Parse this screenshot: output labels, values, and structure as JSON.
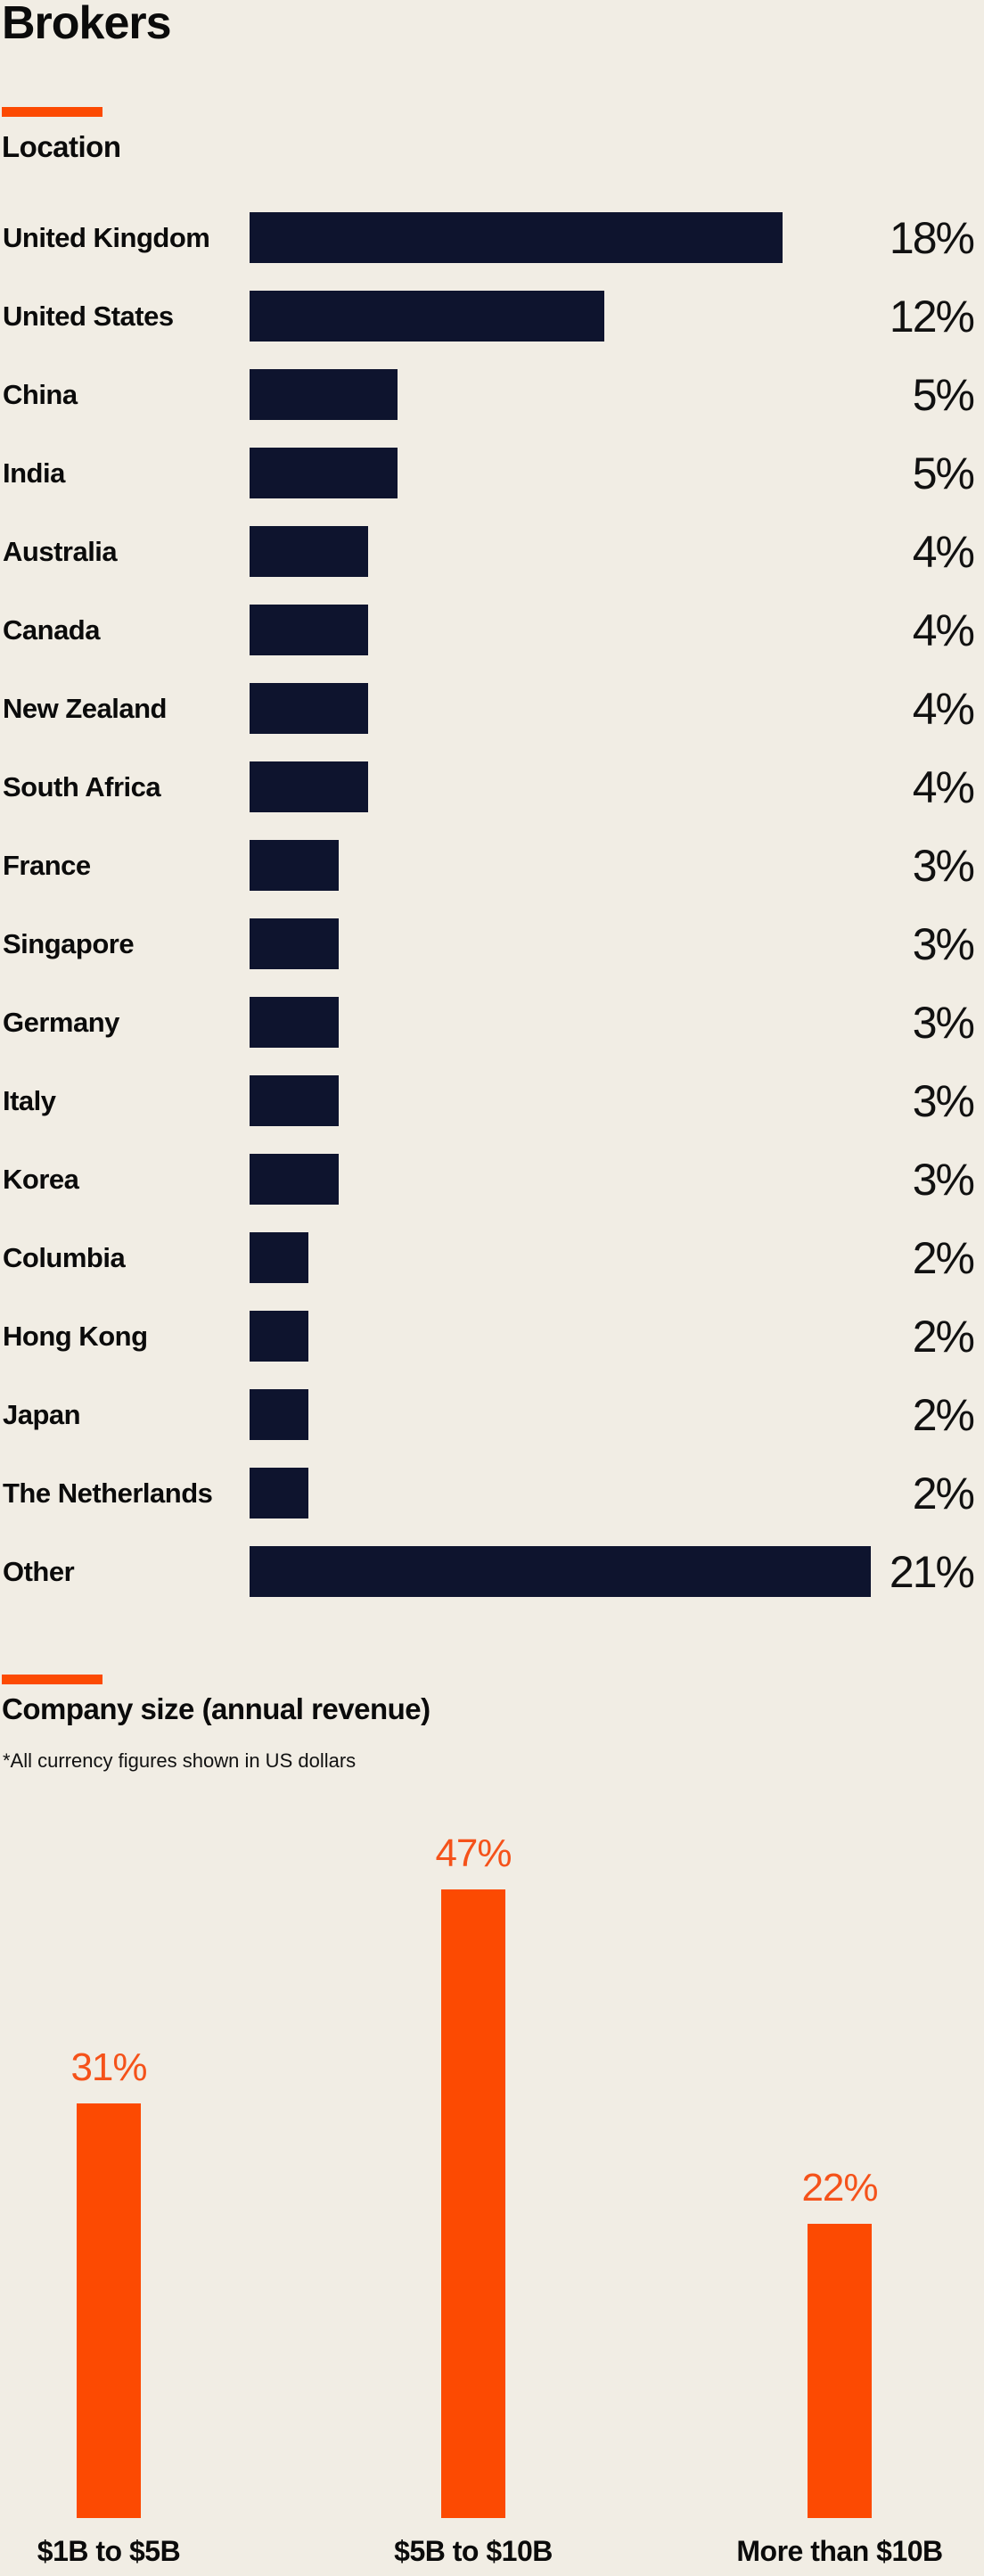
{
  "page": {
    "title": "Brokers"
  },
  "colors": {
    "background": "#F1EDE4",
    "bar_navy": "#0E142E",
    "accent_orange": "#FC4A02",
    "orange_label": "#F5521A",
    "text": "#0B0B0B"
  },
  "chart_data": [
    {
      "type": "bar",
      "orientation": "horizontal",
      "title": "Location",
      "categories": [
        "United Kingdom",
        "United States",
        "China",
        "India",
        "Australia",
        "Canada",
        "New Zealand",
        "South Africa",
        "France",
        "Singapore",
        "Germany",
        "Italy",
        "Korea",
        "Columbia",
        "Hong Kong",
        "Japan",
        "The Netherlands",
        "Other"
      ],
      "values": [
        18,
        12,
        5,
        5,
        4,
        4,
        4,
        4,
        3,
        3,
        3,
        3,
        3,
        2,
        2,
        2,
        2,
        21
      ],
      "unit": "%",
      "value_labels": [
        "18%",
        "12%",
        "5%",
        "5%",
        "4%",
        "4%",
        "4%",
        "4%",
        "3%",
        "3%",
        "3%",
        "3%",
        "3%",
        "2%",
        "2%",
        "2%",
        "2%",
        "21%"
      ],
      "axis": "none",
      "grid": false,
      "legend": "none",
      "data_label_position": "right-aligned at chart edge",
      "value_range": [
        0,
        21
      ]
    },
    {
      "type": "bar",
      "orientation": "vertical",
      "title": "Company size (annual revenue)",
      "footnote": "*All currency figures shown in US dollars",
      "categories": [
        "$1B to $5B",
        "$5B to $10B",
        "More than $10B"
      ],
      "values": [
        31,
        47,
        22
      ],
      "unit": "%",
      "value_labels": [
        "31%",
        "47%",
        "22%"
      ],
      "axis": "none",
      "grid": false,
      "legend": "none",
      "data_label_position": "above bars",
      "value_range": [
        0,
        47
      ]
    }
  ]
}
